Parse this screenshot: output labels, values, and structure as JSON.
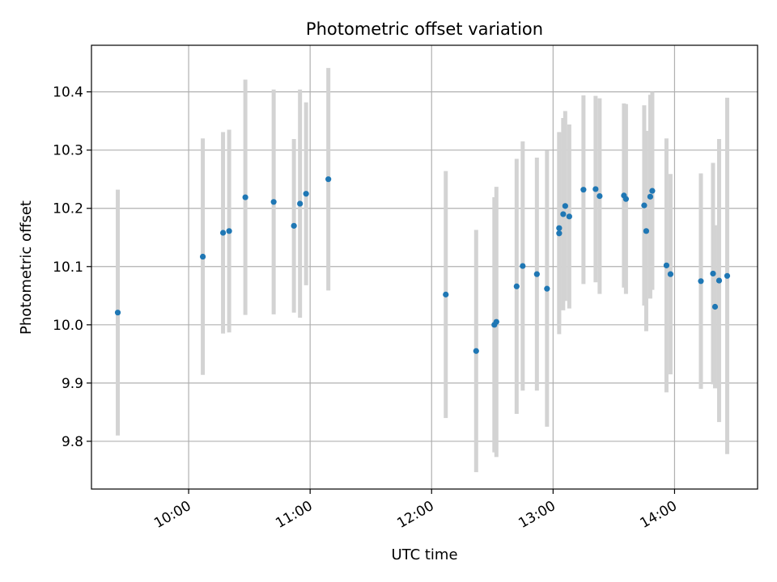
{
  "chart_data": {
    "type": "scatter",
    "title": "Photometric offset variation",
    "xlabel": "UTC time",
    "ylabel": "Photometric offset",
    "x_ticks": [
      "10:00",
      "11:00",
      "12:00",
      "13:00",
      "14:00"
    ],
    "y_ticks": [
      "9.8",
      "9.9",
      "10.0",
      "10.1",
      "10.2",
      "10.3",
      "10.4"
    ],
    "xlim": [
      "09:12",
      "14:41"
    ],
    "ylim": [
      9.718,
      10.48
    ],
    "grid": true,
    "colors": {
      "point": "#1f77b4",
      "errorbar": "#d3d3d3",
      "grid": "#b0b0b0"
    },
    "points": [
      {
        "x": "09:25",
        "y": 10.021,
        "err": 0.211
      },
      {
        "x": "10:07",
        "y": 10.117,
        "err": 0.203
      },
      {
        "x": "10:17",
        "y": 10.158,
        "err": 0.173
      },
      {
        "x": "10:20",
        "y": 10.161,
        "err": 0.174
      },
      {
        "x": "10:28",
        "y": 10.219,
        "err": 0.202
      },
      {
        "x": "10:42",
        "y": 10.211,
        "err": 0.193
      },
      {
        "x": "10:52",
        "y": 10.17,
        "err": 0.149
      },
      {
        "x": "10:55",
        "y": 10.208,
        "err": 0.196
      },
      {
        "x": "10:58",
        "y": 10.225,
        "err": 0.157
      },
      {
        "x": "11:09",
        "y": 10.25,
        "err": 0.191
      },
      {
        "x": "12:07",
        "y": 10.052,
        "err": 0.212
      },
      {
        "x": "12:22",
        "y": 9.955,
        "err": 0.208
      },
      {
        "x": "12:31",
        "y": 10.0,
        "err": 0.219
      },
      {
        "x": "12:32",
        "y": 10.005,
        "err": 0.232
      },
      {
        "x": "12:42",
        "y": 10.066,
        "err": 0.219
      },
      {
        "x": "12:45",
        "y": 10.101,
        "err": 0.214
      },
      {
        "x": "12:52",
        "y": 10.087,
        "err": 0.2
      },
      {
        "x": "12:57",
        "y": 10.062,
        "err": 0.237
      },
      {
        "x": "13:03",
        "y": 10.157,
        "err": 0.173
      },
      {
        "x": "13:03",
        "y": 10.166,
        "err": 0.165
      },
      {
        "x": "13:05",
        "y": 10.19,
        "err": 0.165
      },
      {
        "x": "13:06",
        "y": 10.204,
        "err": 0.163
      },
      {
        "x": "13:08",
        "y": 10.186,
        "err": 0.158
      },
      {
        "x": "13:15",
        "y": 10.232,
        "err": 0.162
      },
      {
        "x": "13:21",
        "y": 10.233,
        "err": 0.16
      },
      {
        "x": "13:23",
        "y": 10.221,
        "err": 0.168
      },
      {
        "x": "13:35",
        "y": 10.222,
        "err": 0.158
      },
      {
        "x": "13:36",
        "y": 10.216,
        "err": 0.163
      },
      {
        "x": "13:45",
        "y": 10.205,
        "err": 0.172
      },
      {
        "x": "13:46",
        "y": 10.161,
        "err": 0.172
      },
      {
        "x": "13:48",
        "y": 10.22,
        "err": 0.175
      },
      {
        "x": "13:49",
        "y": 10.23,
        "err": 0.17
      },
      {
        "x": "13:56",
        "y": 10.102,
        "err": 0.218
      },
      {
        "x": "13:58",
        "y": 10.087,
        "err": 0.172
      },
      {
        "x": "14:13",
        "y": 10.075,
        "err": 0.185
      },
      {
        "x": "14:19",
        "y": 10.088,
        "err": 0.19
      },
      {
        "x": "14:20",
        "y": 10.031,
        "err": 0.14
      },
      {
        "x": "14:22",
        "y": 10.076,
        "err": 0.243
      },
      {
        "x": "14:26",
        "y": 10.084,
        "err": 0.306
      }
    ]
  }
}
